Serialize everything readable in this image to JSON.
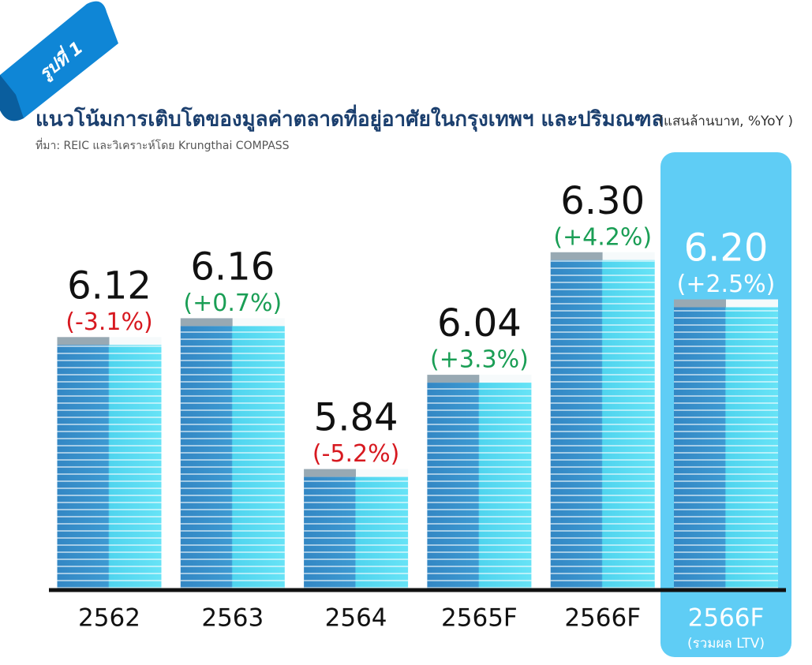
{
  "badge": "รูปที่ 1",
  "chart_data": {
    "type": "bar",
    "title": "แนวโน้มการเติบโตของมูลค่าตลาดที่อยู่อาศัยในกรุงเทพฯ และปริมณฑล",
    "unit_note": "(แสนล้านบาท, %YoY )",
    "source": "ที่มา: REIC และวิเคราะห์โดย Krungthai COMPASS",
    "categories": [
      "2562",
      "2563",
      "2564",
      "2565F",
      "2566F",
      "2566F"
    ],
    "category_notes": [
      null,
      null,
      null,
      null,
      null,
      "(รวมผล LTV)"
    ],
    "values": [
      6.12,
      6.16,
      5.84,
      6.04,
      6.3,
      6.2
    ],
    "value_labels": [
      "6.12",
      "6.16",
      "5.84",
      "6.04",
      "6.30",
      "6.20"
    ],
    "yoy": [
      -3.1,
      0.7,
      -5.2,
      3.3,
      4.2,
      2.5
    ],
    "yoy_labels": [
      "(-3.1%)",
      "(+0.7%)",
      "(-5.2%)",
      "(+3.3%)",
      "(+4.2%)",
      "(+2.5%)"
    ],
    "positive_color": "#1a9e55",
    "negative_color": "#d71920",
    "highlight_index": 5,
    "highlight_color": "#5fcdf5",
    "ylim": [
      5.6,
      6.4
    ]
  }
}
